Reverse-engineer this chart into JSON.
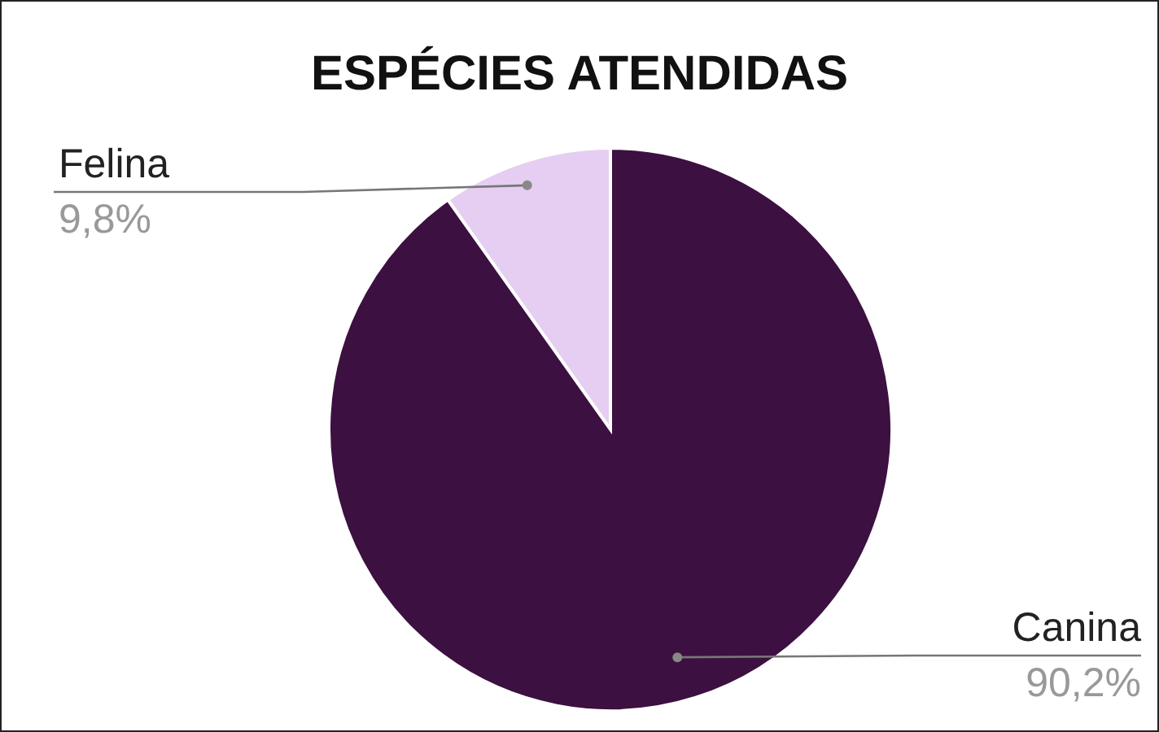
{
  "chart_data": {
    "type": "pie",
    "title": "ESPÉCIES ATENDIDAS",
    "categories": [
      "Felina",
      "Canina"
    ],
    "values": [
      9.8,
      90.2
    ],
    "colors": [
      "#e6cdf2",
      "#3c1040"
    ],
    "value_labels": [
      "9,8%",
      "90,2%"
    ]
  }
}
